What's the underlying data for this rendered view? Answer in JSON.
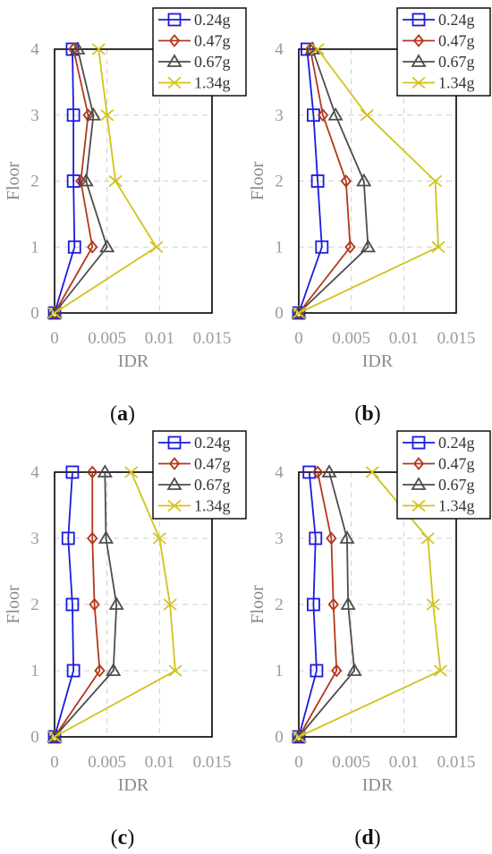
{
  "figure": {
    "panels": [
      {
        "id": "a",
        "caption_open": "(",
        "caption_letter": "a",
        "caption_close": ")"
      },
      {
        "id": "b",
        "caption_open": "(",
        "caption_letter": "b",
        "caption_close": ")"
      },
      {
        "id": "c",
        "caption_open": "(",
        "caption_letter": "c",
        "caption_close": ")"
      },
      {
        "id": "d",
        "caption_open": "(",
        "caption_letter": "d",
        "caption_close": ")"
      }
    ]
  },
  "chart_data": [
    {
      "type": "line",
      "panel": "a",
      "xlabel": "IDR",
      "ylabel": "Floor",
      "xlim": [
        0,
        0.015
      ],
      "ylim": [
        0,
        4
      ],
      "xticks": [
        "0",
        "0.005",
        "0.01",
        "0.015"
      ],
      "yticks": [
        "0",
        "1",
        "2",
        "3",
        "4"
      ],
      "grid": true,
      "legend_position": "top-right",
      "floors": [
        0,
        1,
        2,
        3,
        4
      ],
      "series": [
        {
          "name": "0.24g",
          "color": "#1a1adf",
          "marker": "square",
          "idr": [
            0,
            0.0019,
            0.0018,
            0.0018,
            0.0017
          ]
        },
        {
          "name": "0.47g",
          "color": "#b5361b",
          "marker": "diamond",
          "idr": [
            0,
            0.0036,
            0.0025,
            0.0032,
            0.0018
          ]
        },
        {
          "name": "0.67g",
          "color": "#4d4d4d",
          "marker": "triangle",
          "idr": [
            0,
            0.005,
            0.003,
            0.0037,
            0.0022
          ]
        },
        {
          "name": "1.34g",
          "color": "#d2c21a",
          "marker": "x",
          "idr": [
            0,
            0.0097,
            0.0058,
            0.005,
            0.0042
          ]
        }
      ]
    },
    {
      "type": "line",
      "panel": "b",
      "xlabel": "IDR",
      "ylabel": "Floor",
      "xlim": [
        0,
        0.015
      ],
      "ylim": [
        0,
        4
      ],
      "xticks": [
        "0",
        "0.005",
        "0.01",
        "0.015"
      ],
      "yticks": [
        "0",
        "1",
        "2",
        "3",
        "4"
      ],
      "grid": true,
      "legend_position": "top-right",
      "floors": [
        0,
        1,
        2,
        3,
        4
      ],
      "series": [
        {
          "name": "0.24g",
          "color": "#1a1adf",
          "marker": "square",
          "idr": [
            0,
            0.0022,
            0.0018,
            0.0014,
            0.0008
          ]
        },
        {
          "name": "0.47g",
          "color": "#b5361b",
          "marker": "diamond",
          "idr": [
            0,
            0.0049,
            0.0045,
            0.0023,
            0.0011
          ]
        },
        {
          "name": "0.67g",
          "color": "#4d4d4d",
          "marker": "triangle",
          "idr": [
            0,
            0.0066,
            0.0062,
            0.0035,
            0.0013
          ]
        },
        {
          "name": "1.34g",
          "color": "#d2c21a",
          "marker": "x",
          "idr": [
            0,
            0.0133,
            0.013,
            0.0065,
            0.0018
          ]
        }
      ]
    },
    {
      "type": "line",
      "panel": "c",
      "xlabel": "IDR",
      "ylabel": "Floor",
      "xlim": [
        0,
        0.015
      ],
      "ylim": [
        0,
        4
      ],
      "xticks": [
        "0",
        "0.005",
        "0.01",
        "0.015"
      ],
      "yticks": [
        "0",
        "1",
        "2",
        "3",
        "4"
      ],
      "grid": true,
      "legend_position": "top-right",
      "floors": [
        0,
        1,
        2,
        3,
        4
      ],
      "series": [
        {
          "name": "0.24g",
          "color": "#1a1adf",
          "marker": "square",
          "idr": [
            0,
            0.0018,
            0.0017,
            0.0013,
            0.0017
          ]
        },
        {
          "name": "0.47g",
          "color": "#b5361b",
          "marker": "diamond",
          "idr": [
            0,
            0.0043,
            0.0038,
            0.0036,
            0.0036
          ]
        },
        {
          "name": "0.67g",
          "color": "#4d4d4d",
          "marker": "triangle",
          "idr": [
            0,
            0.0056,
            0.0059,
            0.0049,
            0.0048
          ]
        },
        {
          "name": "1.34g",
          "color": "#d2c21a",
          "marker": "x",
          "idr": [
            0,
            0.0115,
            0.011,
            0.01,
            0.0073
          ]
        }
      ]
    },
    {
      "type": "line",
      "panel": "d",
      "xlabel": "IDR",
      "ylabel": "Floor",
      "xlim": [
        0,
        0.015
      ],
      "ylim": [
        0,
        4
      ],
      "xticks": [
        "0",
        "0.005",
        "0.01",
        "0.015"
      ],
      "yticks": [
        "0",
        "1",
        "2",
        "3",
        "4"
      ],
      "grid": true,
      "legend_position": "top-right",
      "floors": [
        0,
        1,
        2,
        3,
        4
      ],
      "series": [
        {
          "name": "0.24g",
          "color": "#1a1adf",
          "marker": "square",
          "idr": [
            0,
            0.0017,
            0.0014,
            0.0016,
            0.001
          ]
        },
        {
          "name": "0.47g",
          "color": "#b5361b",
          "marker": "diamond",
          "idr": [
            0,
            0.0036,
            0.0033,
            0.0031,
            0.0018
          ]
        },
        {
          "name": "0.67g",
          "color": "#4d4d4d",
          "marker": "triangle",
          "idr": [
            0,
            0.0053,
            0.0047,
            0.0046,
            0.0029
          ]
        },
        {
          "name": "1.34g",
          "color": "#d2c21a",
          "marker": "x",
          "idr": [
            0,
            0.0135,
            0.0128,
            0.0123,
            0.007
          ]
        }
      ]
    }
  ]
}
